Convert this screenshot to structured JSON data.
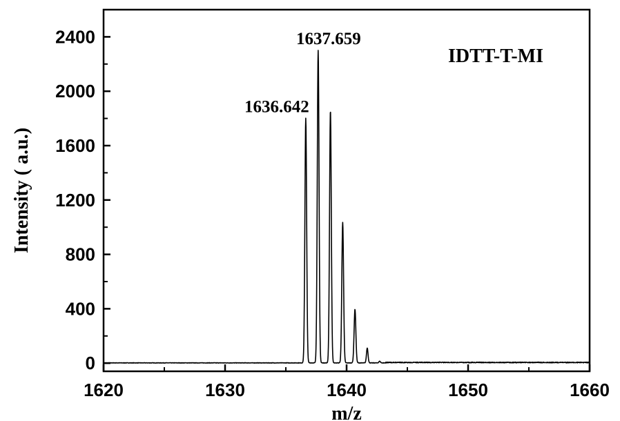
{
  "chart_data": {
    "type": "line",
    "title": "",
    "xlabel": "m/z",
    "ylabel": "Intensity ( a.u.)",
    "xlim": [
      1620,
      1660
    ],
    "ylim": [
      -60,
      2600
    ],
    "x_ticks": [
      1620,
      1630,
      1640,
      1650,
      1660
    ],
    "y_ticks": [
      0,
      400,
      800,
      1200,
      1600,
      2000,
      2400
    ],
    "grid": false,
    "legend": "none",
    "inset_label": "IDTT-T-MI",
    "annotations": [
      {
        "text": "1636.642",
        "x": 1636.64,
        "y": 1800
      },
      {
        "text": "1637.659",
        "x": 1637.66,
        "y": 2300
      }
    ],
    "peaks": [
      {
        "x": 1636.64,
        "y": 1800,
        "width": 0.17
      },
      {
        "x": 1637.66,
        "y": 2300,
        "width": 0.17
      },
      {
        "x": 1638.67,
        "y": 1860,
        "width": 0.17
      },
      {
        "x": 1639.68,
        "y": 1035,
        "width": 0.17
      },
      {
        "x": 1640.69,
        "y": 395,
        "width": 0.17
      },
      {
        "x": 1641.7,
        "y": 110,
        "width": 0.15
      },
      {
        "x": 1642.72,
        "y": 12,
        "width": 0.15
      }
    ],
    "baseline": 2,
    "series": [
      {
        "color": "#000000"
      }
    ]
  }
}
